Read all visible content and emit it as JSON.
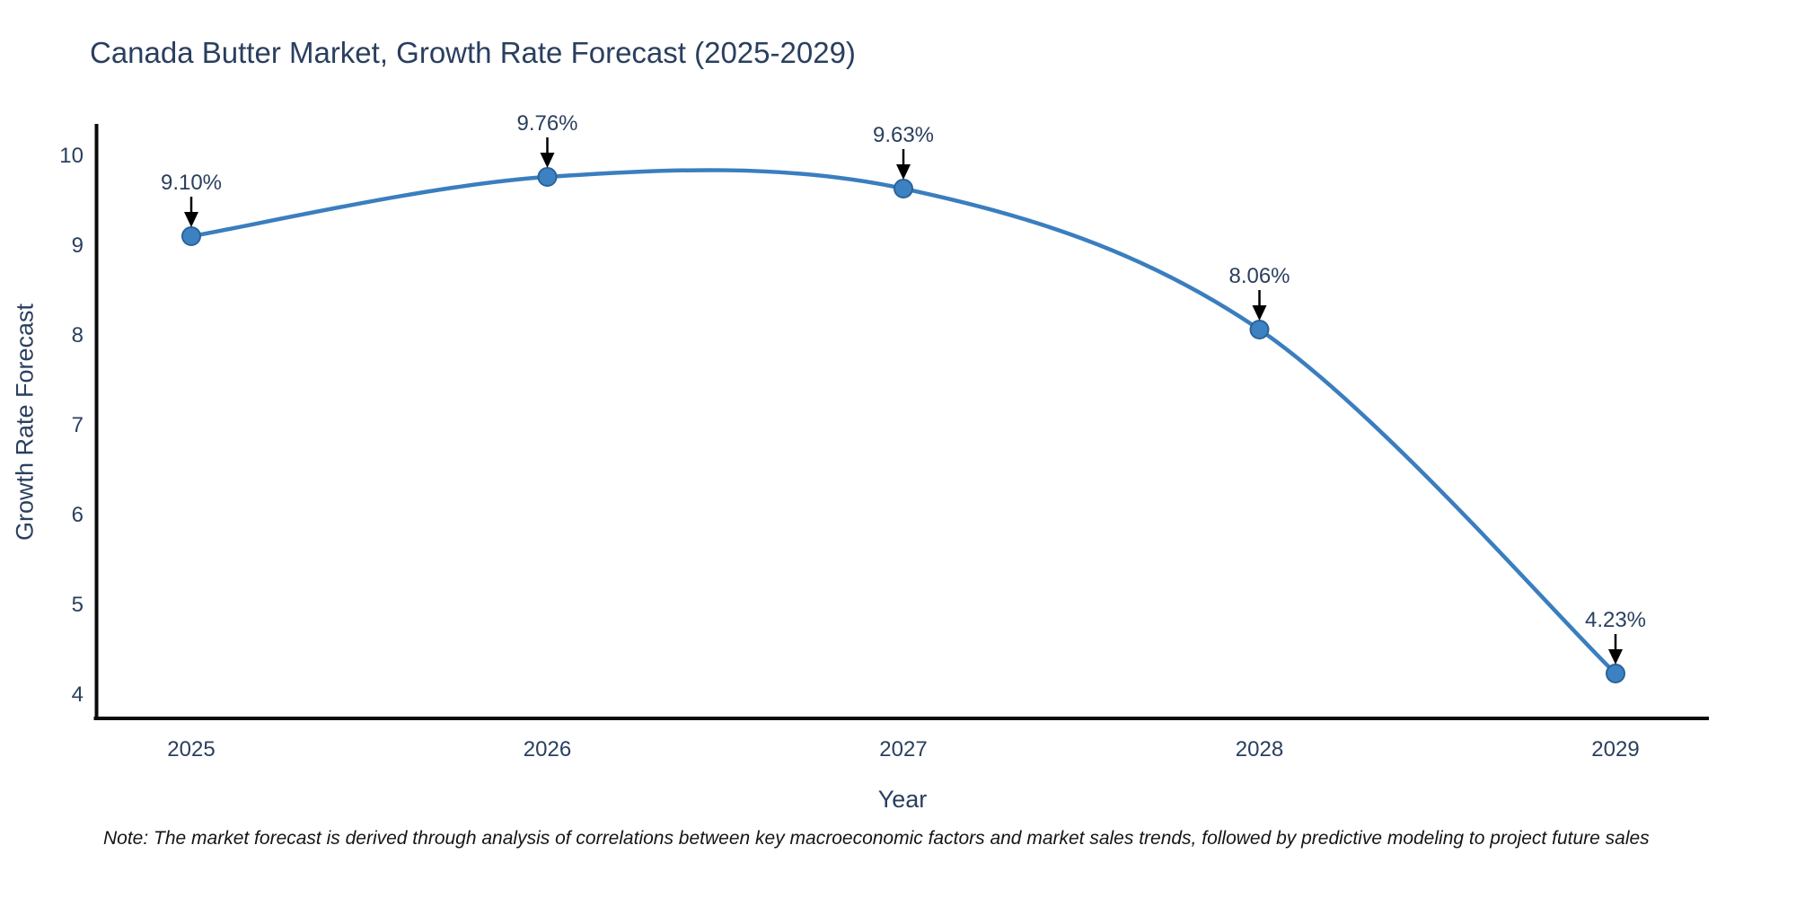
{
  "title": "Canada Butter Market, Growth Rate Forecast (2025-2029)",
  "note": "Note: The market forecast is derived through analysis of correlations between key macroeconomic factors and market sales trends, followed by predictive modeling to project future sales",
  "chart_data": {
    "type": "line",
    "title": "Canada Butter Market, Growth Rate Forecast (2025-2029)",
    "xlabel": "Year",
    "ylabel": "Growth Rate Forecast",
    "x": [
      2025,
      2026,
      2027,
      2028,
      2029
    ],
    "series": [
      {
        "name": "Growth Rate Forecast",
        "values": [
          9.1,
          9.76,
          9.63,
          8.06,
          4.23
        ]
      }
    ],
    "point_labels": [
      "9.10%",
      "9.76%",
      "9.63%",
      "8.06%",
      "4.23%"
    ],
    "xticks": [
      "2025",
      "2026",
      "2027",
      "2028",
      "2029"
    ],
    "yticks": [
      4,
      5,
      6,
      7,
      8,
      9,
      10
    ],
    "ylim": [
      3.73,
      10.35
    ],
    "grid": false,
    "legend_position": "none",
    "smooth_line": true,
    "colors": {
      "line": "#3a7ebf",
      "marker_fill": "#3c82c3",
      "marker_edge": "#2a6399",
      "arrow": "#000000",
      "axis_line": "#0a0a0a",
      "text": "#2a3f5f"
    }
  }
}
